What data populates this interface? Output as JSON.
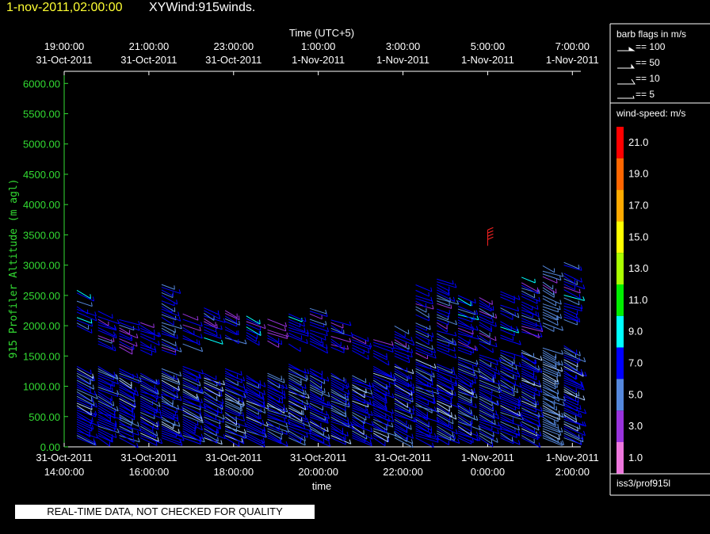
{
  "header": {
    "time": "1-nov-2011,02:00:00",
    "title": "XYWind:915winds."
  },
  "chart_data": {
    "type": "wind-barb",
    "top_axis": {
      "label": "Time (UTC+5)",
      "ticks": [
        {
          "t": 0,
          "line1": "19:00:00",
          "line2": "31-Oct-2011"
        },
        {
          "t": 2,
          "line1": "21:00:00",
          "line2": "31-Oct-2011"
        },
        {
          "t": 4,
          "line1": "23:00:00",
          "line2": "31-Oct-2011"
        },
        {
          "t": 6,
          "line1": "1:00:00",
          "line2": "1-Nov-2011"
        },
        {
          "t": 8,
          "line1": "3:00:00",
          "line2": "1-Nov-2011"
        },
        {
          "t": 10,
          "line1": "5:00:00",
          "line2": "1-Nov-2011"
        },
        {
          "t": 12,
          "line1": "7:00:00",
          "line2": "1-Nov-2011"
        }
      ]
    },
    "bottom_axis": {
      "label": "time",
      "ticks": [
        {
          "t": 0,
          "line1": "31-Oct-2011",
          "line2": "14:00:00"
        },
        {
          "t": 2,
          "line1": "31-Oct-2011",
          "line2": "16:00:00"
        },
        {
          "t": 4,
          "line1": "31-Oct-2011",
          "line2": "18:00:00"
        },
        {
          "t": 6,
          "line1": "31-Oct-2011",
          "line2": "20:00:00"
        },
        {
          "t": 8,
          "line1": "31-Oct-2011",
          "line2": "22:00:00"
        },
        {
          "t": 10,
          "line1": "1-Nov-2011",
          "line2": "0:00:00"
        },
        {
          "t": 12,
          "line1": "1-Nov-2011",
          "line2": "2:00:00"
        }
      ],
      "xlim": [
        0,
        12.2
      ]
    },
    "y_axis": {
      "label": "915 Profiler Altitude (m agl)",
      "ylim": [
        0,
        6200
      ],
      "ticks": [
        "0.00",
        "500.00",
        "1000.00",
        "1500.00",
        "2000.00",
        "2500.00",
        "3000.00",
        "3500.00",
        "4000.00",
        "4500.00",
        "5000.00",
        "5500.00",
        "6000.00"
      ]
    },
    "barb_legend": {
      "title": "barb flags in m/s",
      "items": [
        "== 100",
        "== 50",
        "== 10",
        "== 5"
      ]
    },
    "color_legend": {
      "title": "wind-speed: m/s",
      "levels": [
        {
          "label": "21.0",
          "color": "#ff0000"
        },
        {
          "label": "19.0",
          "color": "#ff6600"
        },
        {
          "label": "17.0",
          "color": "#ffaa00"
        },
        {
          "label": "15.0",
          "color": "#ffff00"
        },
        {
          "label": "13.0",
          "color": "#aaff00"
        },
        {
          "label": "11.0",
          "color": "#00ee00"
        },
        {
          "label": "9.0",
          "color": "#00ffff"
        },
        {
          "label": "7.0",
          "color": "#0000ff"
        },
        {
          "label": "5.0",
          "color": "#5588dd"
        },
        {
          "label": "3.0",
          "color": "#9933dd"
        },
        {
          "label": "1.0",
          "color": "#ee77dd"
        }
      ]
    },
    "profiles": [
      {
        "t": 0.3,
        "top": 1350,
        "upper": [
          2000,
          2600
        ],
        "speed": 7
      },
      {
        "t": 0.8,
        "top": 1350,
        "upper": [
          1700,
          2250
        ],
        "speed": 7
      },
      {
        "t": 1.3,
        "top": 1300,
        "upper": [
          1650,
          2100
        ],
        "speed": 6
      },
      {
        "t": 1.8,
        "top": 1250,
        "upper": [
          1600,
          2100
        ],
        "speed": 6
      },
      {
        "t": 2.3,
        "top": 1300,
        "upper": [
          1600,
          2700
        ],
        "speed": 7
      },
      {
        "t": 2.8,
        "top": 1350,
        "upper": [
          1700,
          2200
        ],
        "speed": 6
      },
      {
        "t": 3.3,
        "top": 1250,
        "upper": [
          1800,
          2300
        ],
        "speed": 6
      },
      {
        "t": 3.8,
        "top": 1300,
        "upper": [
          1800,
          2250
        ],
        "speed": 6
      },
      {
        "t": 4.3,
        "top": 1200,
        "upper": [
          1800,
          2200
        ],
        "speed": 6
      },
      {
        "t": 4.8,
        "top": 1250,
        "upper": [
          1750,
          2150
        ],
        "speed": 6
      },
      {
        "t": 5.3,
        "top": 1400,
        "upper": [
          1700,
          2200
        ],
        "speed": 6
      },
      {
        "t": 5.8,
        "top": 1300,
        "upper": [
          1700,
          2300
        ],
        "speed": 7
      },
      {
        "t": 6.3,
        "top": 1250,
        "upper": [
          1600,
          2100
        ],
        "speed": 6
      },
      {
        "t": 6.8,
        "top": 1200,
        "upper": [
          1500,
          1900
        ],
        "speed": 7
      },
      {
        "t": 7.3,
        "top": 1350,
        "upper": [
          1500,
          1800
        ],
        "speed": 6
      },
      {
        "t": 7.8,
        "top": 1400,
        "upper": [
          1500,
          2000
        ],
        "speed": 7
      },
      {
        "t": 8.3,
        "top": 1450,
        "upper": [
          1550,
          2700
        ],
        "speed": 7
      },
      {
        "t": 8.8,
        "top": 1400,
        "upper": [
          1600,
          2800
        ],
        "speed": 7
      },
      {
        "t": 9.3,
        "top": 1500,
        "upper": [
          1600,
          2500
        ],
        "speed": 7
      },
      {
        "t": 9.8,
        "top": 1550,
        "upper": [
          1700,
          2500
        ],
        "speed": 7
      },
      {
        "t": 10.3,
        "top": 1600,
        "upper": [
          1800,
          2600
        ],
        "speed": 6
      },
      {
        "t": 10.8,
        "top": 1600,
        "upper": [
          1900,
          2800
        ],
        "speed": 6
      },
      {
        "t": 11.3,
        "top": 1650,
        "upper": [
          2000,
          3000
        ],
        "speed": 5
      },
      {
        "t": 11.8,
        "top": 1700,
        "upper": [
          2100,
          3050
        ],
        "speed": 6
      }
    ]
  },
  "qc_banner": "REAL-TIME DATA, NOT CHECKED FOR QUALITY",
  "panel_source": "iss3/prof915l"
}
